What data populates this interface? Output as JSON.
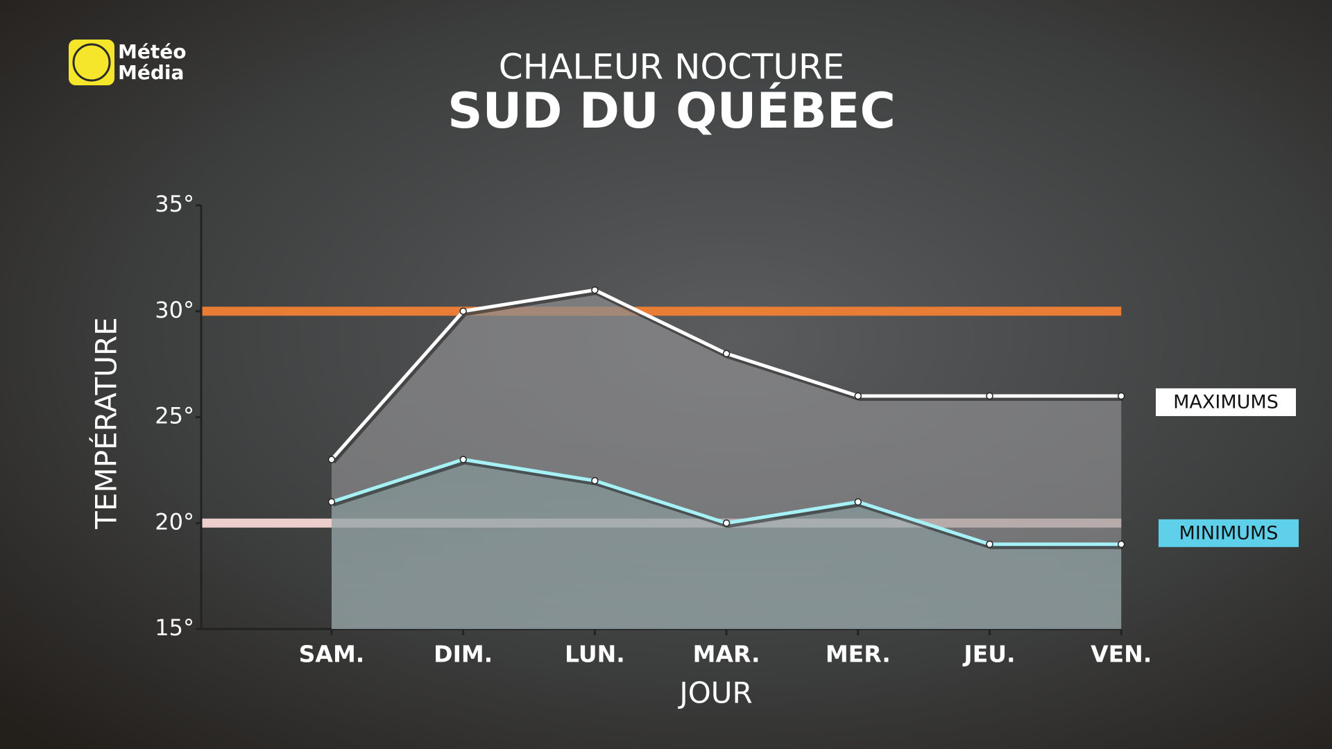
{
  "logo": [
    "Météo",
    "Média"
  ],
  "chart_data": {
    "type": "line",
    "title": "CHALEUR NOCTURE",
    "subtitle": "SUD DU QUÉBEC",
    "x_label": "JOUR",
    "y_label": "TEMPÉRATURE",
    "categories": [
      "SAM.",
      "DIM.",
      "LUN.",
      "MAR.",
      "MER.",
      "JEU.",
      "VEN."
    ],
    "series": [
      {
        "name": "MAXIMUMS",
        "color": "#ffffff",
        "values": [
          23,
          30,
          31,
          28,
          26,
          26,
          26
        ]
      },
      {
        "name": "MINIMUMS",
        "color": "#a6f1f6",
        "values": [
          21,
          23,
          22,
          20,
          21,
          19,
          19
        ]
      }
    ],
    "reference_lines": [
      {
        "value": 30,
        "color": "#f28034"
      },
      {
        "value": 20,
        "color": "#f6d6d4"
      }
    ],
    "ylim": [
      15,
      35
    ],
    "yticks": [
      {
        "value": 15,
        "label": "15°"
      },
      {
        "value": 20,
        "label": "20°"
      },
      {
        "value": 25,
        "label": "25°"
      },
      {
        "value": 30,
        "label": "30°"
      },
      {
        "value": 35,
        "label": "35°"
      }
    ]
  }
}
